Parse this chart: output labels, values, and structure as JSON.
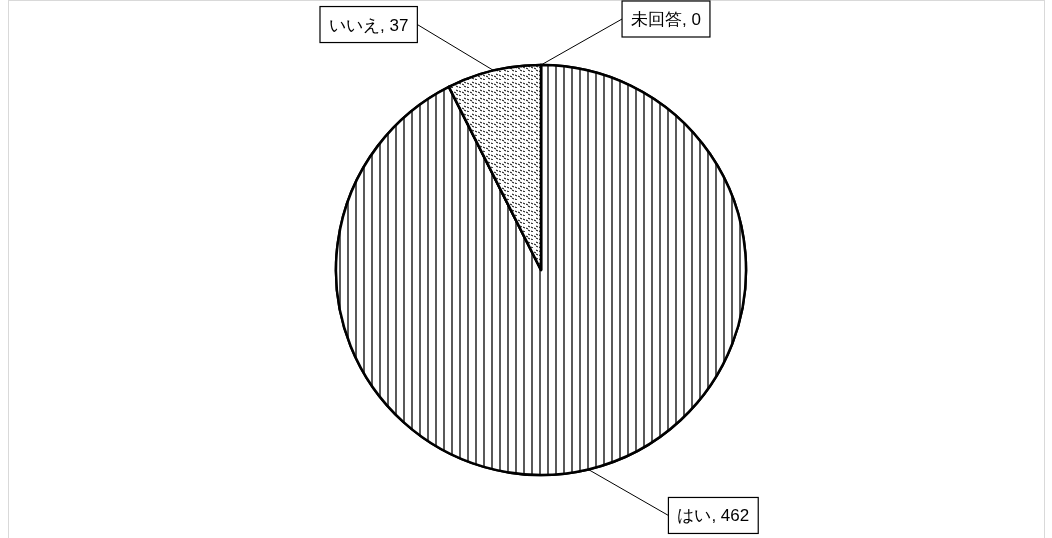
{
  "chart_data": {
    "type": "pie",
    "categories": [
      "はい",
      "いいえ",
      "未回答"
    ],
    "values": [
      462,
      37,
      0
    ],
    "colors": [
      "#000000",
      "#000000",
      "#000000"
    ],
    "value_labels": [
      ", 462",
      ", 37",
      ", 0"
    ]
  }
}
